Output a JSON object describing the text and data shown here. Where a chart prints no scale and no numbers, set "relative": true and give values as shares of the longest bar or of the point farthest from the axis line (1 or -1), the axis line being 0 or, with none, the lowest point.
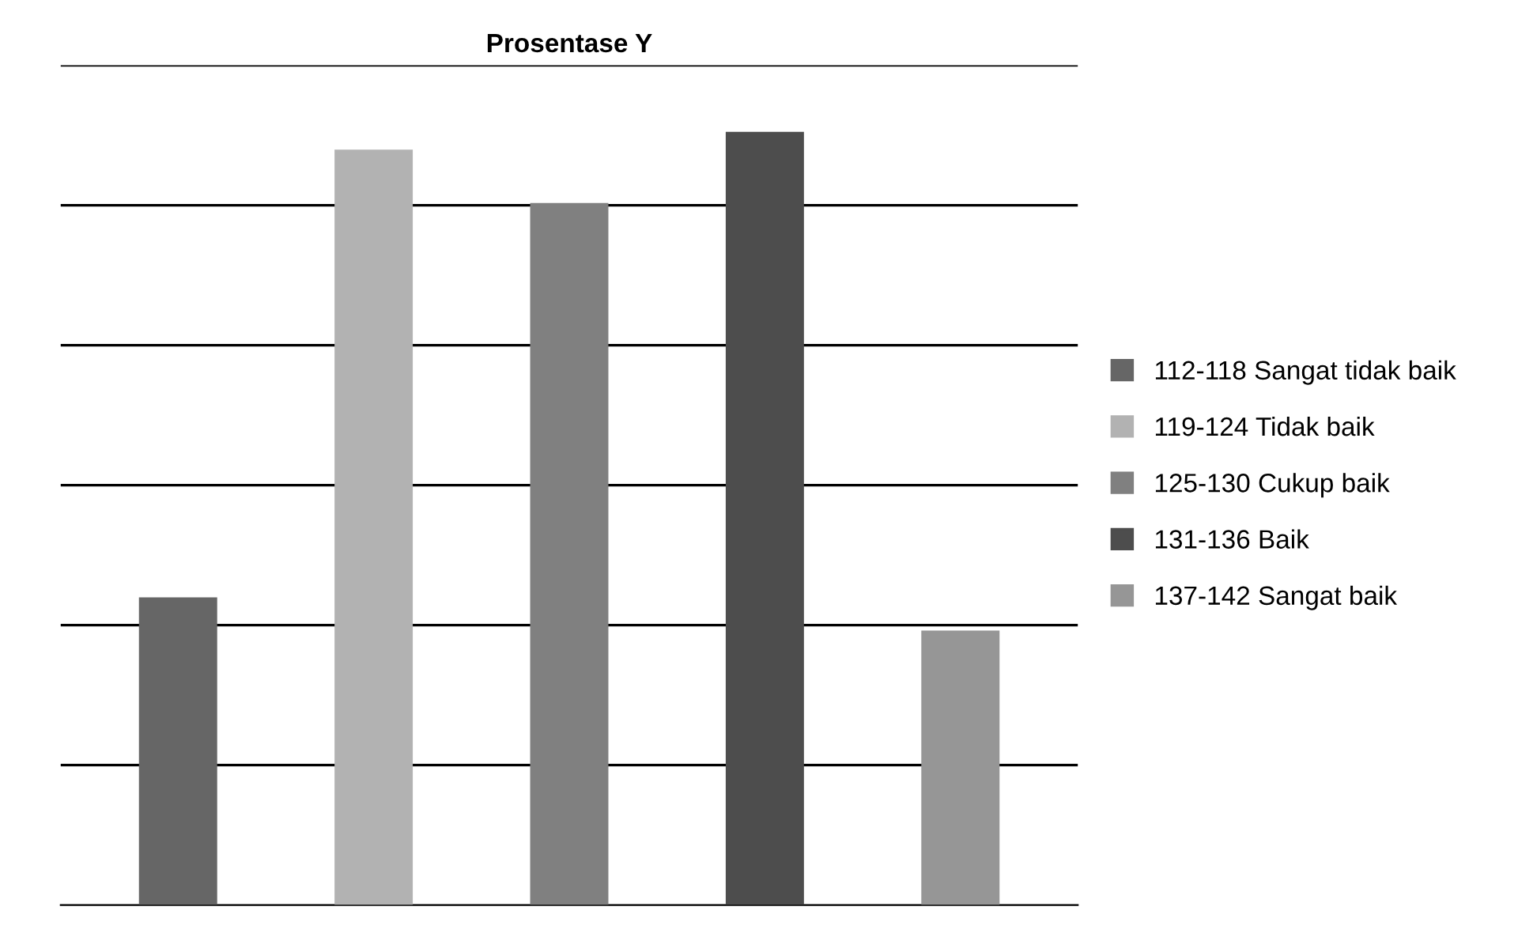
{
  "chart_data": {
    "type": "bar",
    "title": "Prosentase Y",
    "relative": true,
    "stacked": true,
    "grid": "y",
    "legend": "right",
    "categories": [
      null,
      null,
      null,
      null,
      null
    ],
    "series": [
      {
        "name": "112-118 Sangat tidak baik",
        "color": "#666666",
        "values": [
          0.398,
          null,
          null,
          null,
          null
        ]
      },
      {
        "name": "119-124 Tidak baik",
        "color": "#b2b2b2",
        "values": [
          null,
          0.977,
          null,
          null,
          null
        ]
      },
      {
        "name": "125-130 Cukup baik",
        "color": "#808080",
        "values": [
          null,
          null,
          0.908,
          null,
          null
        ]
      },
      {
        "name": "131-136 Baik",
        "color": "#4d4d4d",
        "values": [
          null,
          null,
          null,
          1,
          null
        ]
      },
      {
        "name": "137-142 Sangat baik",
        "color": "#969696",
        "values": [
          null,
          null,
          null,
          null,
          0.355
        ]
      }
    ]
  }
}
